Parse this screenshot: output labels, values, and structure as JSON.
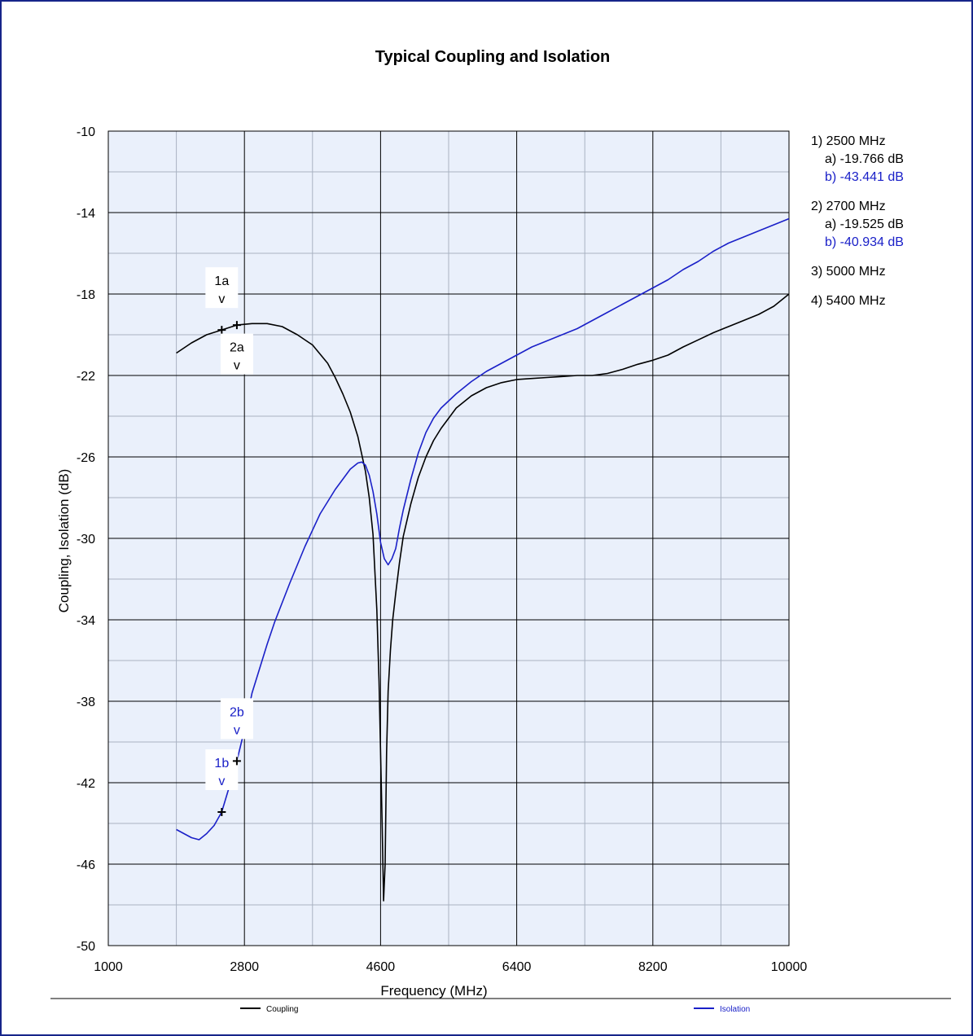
{
  "chart_data": {
    "type": "line",
    "title": "Typical Coupling and Isolation",
    "xlabel": "Frequency (MHz)",
    "ylabel": "Coupling, Isolation (dB)",
    "xlim": [
      1000,
      10000
    ],
    "ylim": [
      -50,
      -10
    ],
    "xticks": [
      1000,
      2800,
      4600,
      6400,
      8200,
      10000
    ],
    "yticks": [
      -10,
      -14,
      -18,
      -22,
      -26,
      -30,
      -34,
      -38,
      -42,
      -46,
      -50
    ],
    "grid": true,
    "plot_background": "#eaf0fb",
    "series": [
      {
        "name": "Coupling",
        "color": "#000000",
        "x": [
          1900,
          2100,
          2300,
          2500,
          2700,
          2900,
          3100,
          3300,
          3500,
          3700,
          3900,
          4000,
          4100,
          4200,
          4300,
          4400,
          4450,
          4500,
          4550,
          4580,
          4620,
          4640,
          4660,
          4680,
          4700,
          4730,
          4760,
          4800,
          4850,
          4900,
          5000,
          5100,
          5200,
          5300,
          5400,
          5500,
          5600,
          5800,
          6000,
          6200,
          6400,
          6600,
          6800,
          7000,
          7200,
          7400,
          7600,
          7800,
          8000,
          8200,
          8400,
          8600,
          8800,
          9000,
          9200,
          9400,
          9600,
          9800,
          10000
        ],
        "y": [
          -20.9,
          -20.4,
          -20.0,
          -19.766,
          -19.525,
          -19.45,
          -19.45,
          -19.6,
          -20.0,
          -20.5,
          -21.4,
          -22.1,
          -22.9,
          -23.8,
          -25.0,
          -26.7,
          -28.0,
          -29.8,
          -33.5,
          -37.0,
          -44.0,
          -47.8,
          -46.0,
          -40.5,
          -37.5,
          -35.5,
          -34.0,
          -32.7,
          -31.2,
          -29.9,
          -28.3,
          -27.0,
          -26.0,
          -25.2,
          -24.6,
          -24.1,
          -23.6,
          -23.0,
          -22.6,
          -22.35,
          -22.2,
          -22.15,
          -22.1,
          -22.05,
          -22.0,
          -22.0,
          -21.9,
          -21.7,
          -21.45,
          -21.25,
          -21.0,
          -20.6,
          -20.25,
          -19.9,
          -19.6,
          -19.3,
          -19.0,
          -18.6,
          -18.0
        ]
      },
      {
        "name": "Isolation",
        "color": "#1a20c8",
        "x": [
          1900,
          2000,
          2100,
          2200,
          2300,
          2400,
          2500,
          2600,
          2700,
          2800,
          2900,
          3000,
          3100,
          3200,
          3400,
          3600,
          3800,
          4000,
          4200,
          4300,
          4350,
          4400,
          4450,
          4500,
          4550,
          4600,
          4650,
          4700,
          4750,
          4800,
          4850,
          4900,
          5000,
          5100,
          5200,
          5300,
          5400,
          5600,
          5800,
          6000,
          6200,
          6400,
          6600,
          6800,
          7000,
          7200,
          7400,
          7600,
          7800,
          8000,
          8200,
          8400,
          8600,
          8800,
          9000,
          9200,
          9400,
          9600,
          9800,
          10000
        ],
        "y": [
          -44.3,
          -44.5,
          -44.7,
          -44.8,
          -44.5,
          -44.1,
          -43.441,
          -42.2,
          -40.934,
          -39.4,
          -37.6,
          -36.4,
          -35.2,
          -34.1,
          -32.2,
          -30.4,
          -28.8,
          -27.6,
          -26.6,
          -26.3,
          -26.25,
          -26.4,
          -26.9,
          -27.7,
          -28.8,
          -30.2,
          -31.0,
          -31.3,
          -31.0,
          -30.5,
          -29.5,
          -28.6,
          -27.1,
          -25.8,
          -24.8,
          -24.1,
          -23.6,
          -22.9,
          -22.3,
          -21.8,
          -21.4,
          -21.0,
          -20.6,
          -20.3,
          -20.0,
          -19.7,
          -19.3,
          -18.9,
          -18.5,
          -18.1,
          -17.7,
          -17.3,
          -16.8,
          -16.4,
          -15.9,
          -15.5,
          -15.2,
          -14.9,
          -14.6,
          -14.3
        ]
      }
    ],
    "markers": [
      {
        "label": "1a",
        "x": 2500,
        "y": -19.766,
        "series": 0,
        "text_offset": 2.2
      },
      {
        "label": "2a",
        "x": 2700,
        "y": -19.525,
        "series": 0,
        "text_offset": -1.3
      },
      {
        "label": "1b",
        "x": 2500,
        "y": -43.441,
        "series": 1,
        "text_offset": 2.2
      },
      {
        "label": "2b",
        "x": 2700,
        "y": -40.934,
        "series": 1,
        "text_offset": 2.2
      }
    ],
    "marker_arrow": "v",
    "marker_readout": [
      {
        "lines": [
          {
            "text": "1) 2500 MHz",
            "color": "#000000"
          },
          {
            "text": "a) -19.766 dB",
            "color": "#000000"
          },
          {
            "text": "b) -43.441 dB",
            "color": "#1a20c8"
          }
        ]
      },
      {
        "lines": [
          {
            "text": "2) 2700 MHz",
            "color": "#000000"
          },
          {
            "text": "a) -19.525 dB",
            "color": "#000000"
          },
          {
            "text": "b) -40.934 dB",
            "color": "#1a20c8"
          }
        ]
      },
      {
        "lines": [
          {
            "text": "3) 5000 MHz",
            "color": "#000000"
          }
        ]
      },
      {
        "lines": [
          {
            "text": "4) 5400 MHz",
            "color": "#000000"
          }
        ]
      }
    ],
    "legend": {
      "placement": "bottom",
      "entries": [
        "Coupling",
        "Isolation"
      ]
    }
  }
}
